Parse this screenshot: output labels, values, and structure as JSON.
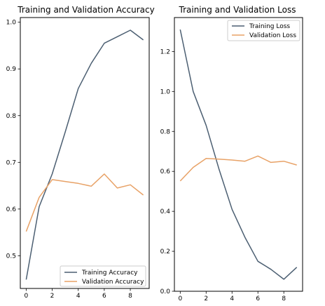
{
  "chart_data": [
    {
      "type": "line",
      "title": "Training and Validation Accuracy",
      "xlabel": "",
      "ylabel": "",
      "x": [
        0,
        1,
        2,
        3,
        4,
        5,
        6,
        7,
        8,
        9
      ],
      "xticks": [
        0,
        2,
        4,
        6,
        8
      ],
      "yticks": [
        0.5,
        0.6,
        0.7,
        0.8,
        0.9,
        1.0
      ],
      "ytick_labels": [
        "0.5",
        "0.6",
        "0.7",
        "0.8",
        "0.9",
        "1.0"
      ],
      "xlim": [
        -0.45,
        9.45
      ],
      "ylim": [
        0.43,
        1.01
      ],
      "grid": false,
      "legend_position": "lower-right",
      "series": [
        {
          "name": "Training Accuracy",
          "color": "#4c5f72",
          "values": [
            0.449,
            0.605,
            0.675,
            0.765,
            0.858,
            0.912,
            0.955,
            0.969,
            0.983,
            0.962
          ]
        },
        {
          "name": "Validation Accuracy",
          "color": "#e8a267",
          "values": [
            0.552,
            0.625,
            0.663,
            0.659,
            0.655,
            0.649,
            0.675,
            0.645,
            0.652,
            0.63
          ]
        }
      ]
    },
    {
      "type": "line",
      "title": "Training and Validation Loss",
      "xlabel": "",
      "ylabel": "",
      "x": [
        0,
        1,
        2,
        3,
        4,
        5,
        6,
        7,
        8,
        9
      ],
      "xticks": [
        0,
        2,
        4,
        6,
        8
      ],
      "yticks": [
        0.0,
        0.2,
        0.4,
        0.6,
        0.8,
        1.0,
        1.2
      ],
      "ytick_labels": [
        "0.0",
        "0.2",
        "0.4",
        "0.6",
        "0.8",
        "1.0",
        "1.2"
      ],
      "xlim": [
        -0.45,
        9.45
      ],
      "ylim": [
        0.0,
        1.37
      ],
      "grid": false,
      "legend_position": "top-right",
      "series": [
        {
          "name": "Training Loss",
          "color": "#4c5f72",
          "values": [
            1.31,
            1.0,
            0.83,
            0.61,
            0.41,
            0.27,
            0.15,
            0.11,
            0.06,
            0.12
          ]
        },
        {
          "name": "Validation Loss",
          "color": "#e8a267",
          "values": [
            0.552,
            0.62,
            0.665,
            0.661,
            0.657,
            0.651,
            0.677,
            0.645,
            0.651,
            0.632
          ]
        }
      ]
    }
  ]
}
